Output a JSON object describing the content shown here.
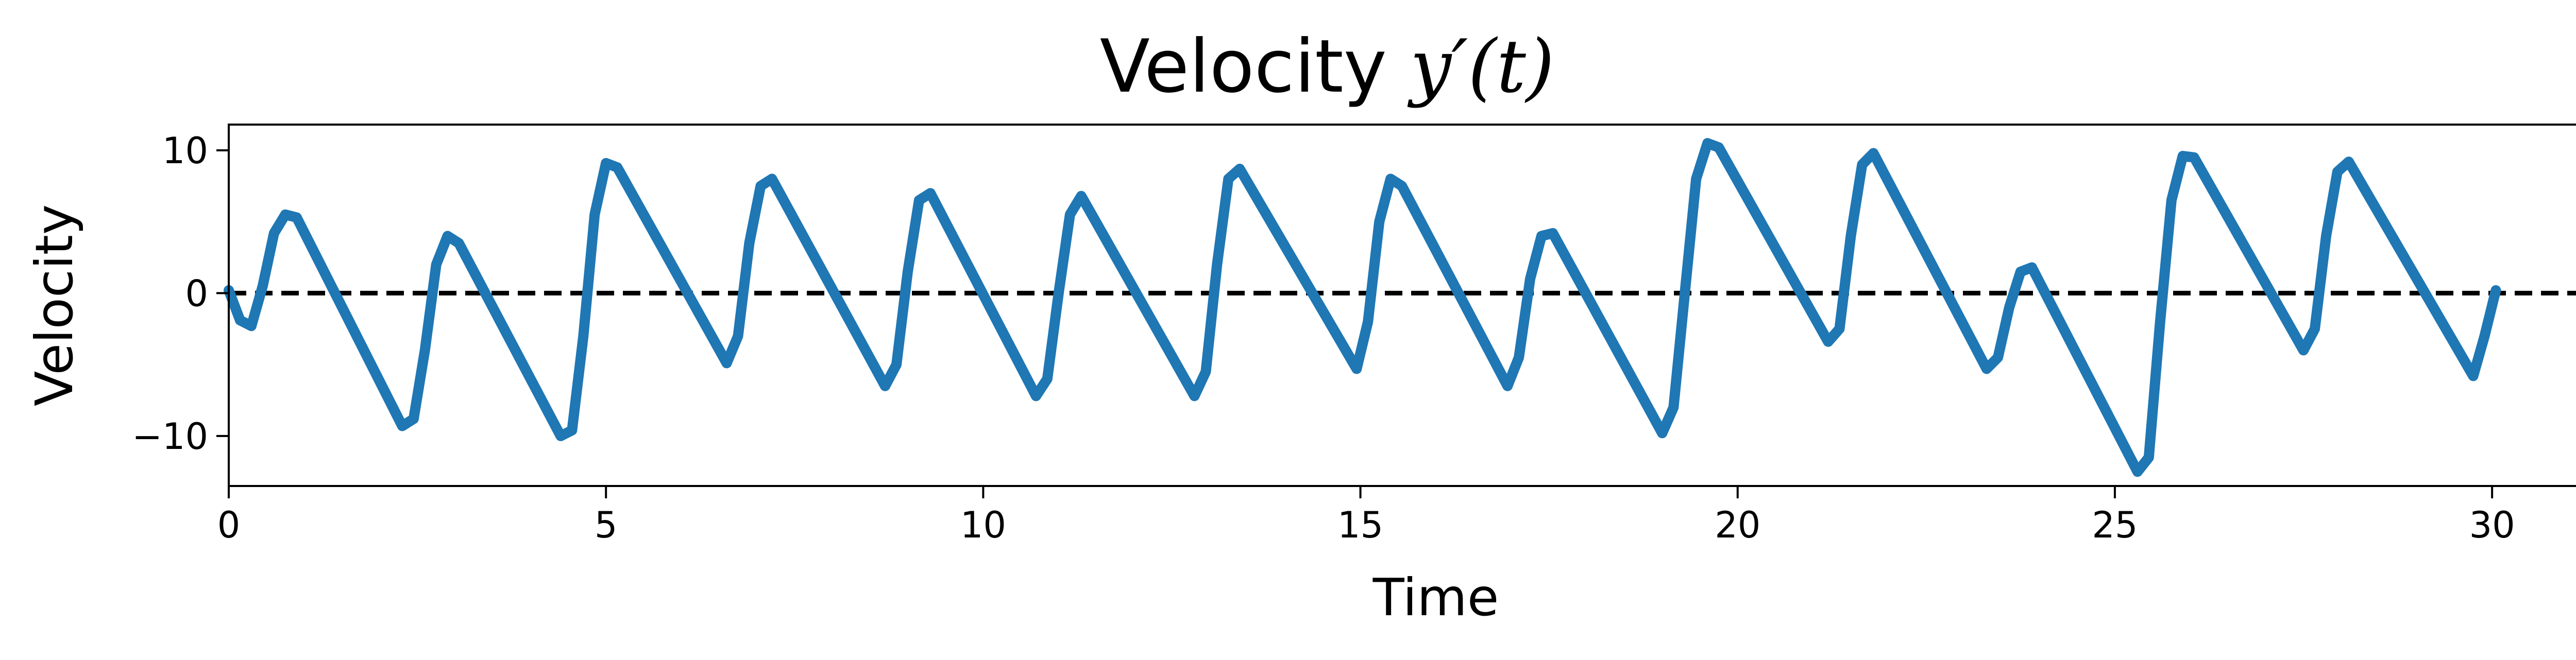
{
  "chart_data": {
    "type": "line",
    "title_main": "Velocity ",
    "title_math": "y′(t)",
    "xlabel": "Time",
    "ylabel": "Velocity",
    "xlim": [
      0,
      32
    ],
    "ylim": [
      -13.5,
      11.8
    ],
    "xticks": [
      {
        "value": 0,
        "label": "0"
      },
      {
        "value": 5,
        "label": "5"
      },
      {
        "value": 10,
        "label": "10"
      },
      {
        "value": 15,
        "label": "15"
      },
      {
        "value": 20,
        "label": "20"
      },
      {
        "value": 25,
        "label": "25"
      },
      {
        "value": 30,
        "label": "30"
      }
    ],
    "yticks": [
      {
        "value": -10,
        "label": "−10"
      },
      {
        "value": 0,
        "label": "0"
      },
      {
        "value": 10,
        "label": "10"
      }
    ],
    "grid": false,
    "reference_line": {
      "y": 0,
      "style": "dashed",
      "color": "#000000"
    },
    "series": [
      {
        "color": "#1f77b4",
        "x": [
          0,
          0.15,
          0.3,
          0.45,
          0.6,
          0.75,
          0.9,
          2.3,
          2.45,
          2.6,
          2.75,
          2.9,
          3.05,
          4.4,
          4.55,
          4.7,
          4.85,
          5.0,
          5.15,
          6.6,
          6.75,
          6.9,
          7.05,
          7.2,
          8.7,
          8.85,
          9.0,
          9.15,
          9.3,
          10.7,
          10.85,
          11.0,
          11.15,
          11.3,
          12.8,
          12.95,
          13.1,
          13.25,
          13.4,
          14.95,
          15.1,
          15.25,
          15.4,
          15.55,
          16.95,
          17.1,
          17.25,
          17.4,
          17.55,
          19.0,
          19.15,
          19.3,
          19.45,
          19.6,
          19.75,
          21.2,
          21.35,
          21.5,
          21.65,
          21.8,
          23.3,
          23.45,
          23.6,
          23.75,
          23.9,
          25.3,
          25.45,
          25.6,
          25.75,
          25.9,
          26.05,
          27.5,
          27.65,
          27.8,
          27.95,
          28.1,
          29.75,
          29.9,
          30.05
        ],
        "y": [
          0.2,
          -1.9,
          -2.3,
          0.5,
          4.2,
          5.5,
          5.3,
          -9.3,
          -8.8,
          -4.0,
          2.0,
          4.0,
          3.5,
          -10.0,
          -9.6,
          -3.0,
          5.5,
          9.1,
          8.8,
          -4.9,
          -3.0,
          3.5,
          7.5,
          8.0,
          -6.5,
          -5.0,
          1.5,
          6.5,
          7.0,
          -7.2,
          -6.0,
          0.0,
          5.5,
          6.8,
          -7.2,
          -5.5,
          2.0,
          8.0,
          8.7,
          -5.3,
          -2.0,
          5.0,
          8.0,
          7.5,
          -6.5,
          -4.5,
          1.0,
          4.0,
          4.2,
          -9.8,
          -8.0,
          0.0,
          8.0,
          10.5,
          10.2,
          -3.4,
          -2.5,
          4.0,
          9.0,
          9.8,
          -5.3,
          -4.5,
          -1.0,
          1.5,
          1.8,
          -12.5,
          -11.5,
          -2.0,
          6.5,
          9.6,
          9.5,
          -4.0,
          -2.5,
          4.0,
          8.5,
          9.2,
          -5.8,
          -3.0,
          0.2
        ]
      }
    ]
  }
}
